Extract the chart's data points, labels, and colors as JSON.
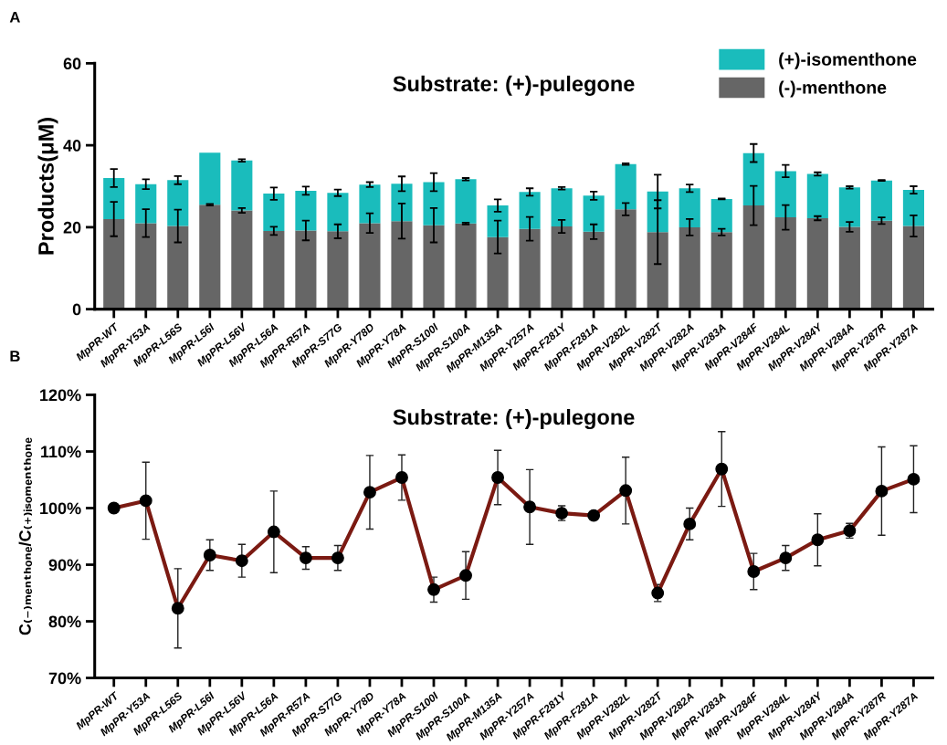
{
  "chart_data": [
    {
      "type": "bar",
      "stacked": true,
      "title": "Substrate: (+)-pulegone",
      "ylabel": "Products(μM)",
      "annotations": [
        "A"
      ],
      "categories": [
        "MpPR-WT",
        "MpPR-Y53A",
        "MpPR-L56S",
        "MpPR-L56I",
        "MpPR-L56V",
        "MpPR-L56A",
        "MpPR-R57A",
        "MpPR-S77G",
        "MpPR-Y78D",
        "MpPR-Y78A",
        "MpPR-S100I",
        "MpPR-S100A",
        "MpPR-M135A",
        "MpPR-Y257A",
        "MpPR-F281Y",
        "MpPR-F281A",
        "MpPR-V282L",
        "MpPR-V282T",
        "MpPR-V282A",
        "MpPR-V283A",
        "MpPR-V284F",
        "MpPR-V284L",
        "MpPR-V284Y",
        "MpPR-V284A",
        "MpPR-Y287R",
        "MpPR-Y287A"
      ],
      "series": [
        {
          "name": "(-)-menthone",
          "color": "#666666",
          "values": [
            22,
            21,
            20.3,
            25.5,
            24.1,
            19.1,
            19.2,
            19,
            21,
            21.5,
            20.5,
            20.9,
            17.6,
            19.6,
            20.2,
            18.9,
            24.4,
            18.8,
            20,
            18.8,
            25.3,
            22.4,
            22.2,
            20.1,
            21.6,
            20.3
          ],
          "errors": [
            4.2,
            3.4,
            4,
            0.2,
            0.6,
            1,
            2.4,
            1.7,
            2.4,
            4.3,
            4.2,
            0.2,
            4,
            2.9,
            1.6,
            1.8,
            1.5,
            7.8,
            2,
            0.8,
            4.8,
            3,
            0.5,
            1.2,
            0.8,
            2.6
          ]
        },
        {
          "name": "(+)-isomenthone",
          "color": "#1abcbc",
          "values": [
            10,
            9.5,
            11.2,
            12.7,
            12.2,
            9.1,
            9.7,
            9.4,
            9.4,
            9.1,
            10.5,
            10.8,
            7.7,
            9,
            9.3,
            8.8,
            11,
            9.9,
            9.5,
            8.1,
            12.8,
            11.3,
            10.8,
            9.6,
            9.8,
            8.8
          ],
          "errors": [
            2.2,
            1.2,
            1,
            null,
            0.3,
            1.5,
            1,
            0.8,
            0.6,
            1.8,
            2.2,
            0.3,
            1.5,
            0.9,
            0.3,
            1,
            0.2,
            4.1,
            0.9,
            0.1,
            2.2,
            1.5,
            0.4,
            0.3,
            0.1,
            0.9
          ]
        }
      ],
      "ylim": [
        0,
        60
      ],
      "yticks": [
        0,
        20,
        40,
        60
      ],
      "legend": "top right",
      "grid": false
    },
    {
      "type": "line",
      "title": "Substrate: (+)-pulegone",
      "ylabel": "C₍₋₎ₘₑₙₜₕₒₙₑ/C₍₊₎ᵢₛₒₘₑₙₜₕₒₙₑ",
      "annotations": [
        "B"
      ],
      "categories": [
        "MpPR-WT",
        "MpPR-Y53A",
        "MpPR-L56S",
        "MpPR-L56I",
        "MpPR-L56V",
        "MpPR-L56A",
        "MpPR-R57A",
        "MpPR-S77G",
        "MpPR-Y78D",
        "MpPR-Y78A",
        "MpPR-S100I",
        "MpPR-S100A",
        "MpPR-M135A",
        "MpPR-Y257A",
        "MpPR-F281Y",
        "MpPR-F281A",
        "MpPR-V282L",
        "MpPR-V282T",
        "MpPR-V282A",
        "MpPR-V283A",
        "MpPR-V284F",
        "MpPR-V284L",
        "MpPR-V284Y",
        "MpPR-V284A",
        "MpPR-Y287R",
        "MpPR-Y287A"
      ],
      "series": [
        {
          "color": "#7b1a12",
          "values": [
            100,
            101.3,
            82.3,
            91.7,
            90.7,
            95.8,
            91.2,
            91.2,
            102.8,
            105.4,
            85.6,
            88.1,
            105.4,
            100.2,
            99.1,
            98.7,
            103.1,
            85,
            97.2,
            106.9,
            88.8,
            91.2,
            94.4,
            96,
            103,
            105.1
          ],
          "errors": [
            null,
            6.8,
            7,
            2.7,
            2.9,
            7.2,
            2,
            2.2,
            6.5,
            4,
            2.2,
            4.2,
            4.8,
            6.6,
            1.3,
            null,
            5.9,
            1.5,
            2.8,
            6.6,
            3.2,
            2.2,
            4.6,
            1.3,
            7.8,
            5.9
          ]
        }
      ],
      "ylim": [
        70,
        120
      ],
      "yticks": [
        {
          "value": 70,
          "label": "70%"
        },
        {
          "value": 80,
          "label": "80%"
        },
        {
          "value": 90,
          "label": "90%"
        },
        {
          "value": 100,
          "label": "100%"
        },
        {
          "value": 110,
          "label": "110%"
        },
        {
          "value": 120,
          "label": "120%"
        }
      ],
      "marker": "circle",
      "line_style": "solid",
      "grid": false
    }
  ]
}
